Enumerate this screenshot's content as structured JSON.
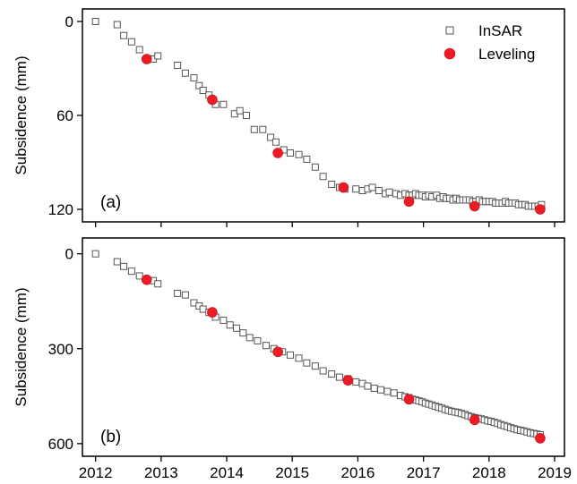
{
  "chart_data": [
    {
      "type": "scatter",
      "panel_label": "(a)",
      "ylabel": "Subsidence (mm)",
      "ylim": [
        -8,
        128
      ],
      "yticks": [
        0,
        60,
        120
      ],
      "xlim": [
        2011.8,
        2019.15
      ],
      "xticks": [
        2012,
        2013,
        2014,
        2015,
        2016,
        2017,
        2018,
        2019
      ],
      "legend": {
        "position": "top-right",
        "entries": [
          "InSAR",
          "Leveling"
        ]
      },
      "series": [
        {
          "name": "InSAR",
          "marker": "open-square",
          "color": "#555555",
          "x": [
            2012.0,
            2012.33,
            2012.43,
            2012.55,
            2012.67,
            2012.88,
            2012.95,
            2013.25,
            2013.37,
            2013.5,
            2013.58,
            2013.64,
            2013.73,
            2013.83,
            2013.95,
            2014.12,
            2014.2,
            2014.3,
            2014.42,
            2014.55,
            2014.67,
            2014.75,
            2014.87,
            2014.97,
            2015.1,
            2015.22,
            2015.35,
            2015.47,
            2015.6,
            2015.72,
            2015.8,
            2015.97,
            2016.07,
            2016.15,
            2016.22,
            2016.32,
            2016.42,
            2016.48,
            2016.58,
            2016.65,
            2016.72,
            2016.78,
            2016.83,
            2016.88,
            2016.93,
            2016.98,
            2017.03,
            2017.08,
            2017.13,
            2017.2,
            2017.25,
            2017.3,
            2017.35,
            2017.4,
            2017.45,
            2017.5,
            2017.55,
            2017.6,
            2017.65,
            2017.7,
            2017.75,
            2017.8,
            2017.85,
            2017.9,
            2017.95,
            2018.0,
            2018.05,
            2018.1,
            2018.15,
            2018.2,
            2018.25,
            2018.3,
            2018.35,
            2018.4,
            2018.45,
            2018.5,
            2018.55,
            2018.6,
            2018.65,
            2018.7,
            2018.75,
            2018.8
          ],
          "y": [
            0,
            2,
            9,
            13,
            18,
            24,
            22,
            28,
            33,
            36,
            41,
            44,
            47,
            53,
            53,
            59,
            57,
            60,
            69,
            69,
            74,
            77,
            82,
            84,
            85,
            88,
            93,
            99,
            104,
            106,
            107,
            107,
            108,
            107,
            106,
            108,
            110,
            109,
            110,
            111,
            110,
            111,
            111,
            110,
            111,
            111,
            112,
            111,
            112,
            111,
            113,
            112,
            113,
            113,
            114,
            113,
            114,
            114,
            114,
            114,
            115,
            115,
            114,
            115,
            115,
            115,
            115,
            116,
            116,
            116,
            115,
            116,
            116,
            116,
            117,
            117,
            117,
            118,
            118,
            118,
            118,
            117
          ]
        },
        {
          "name": "Leveling",
          "marker": "filled-circle",
          "color": "#ed1c24",
          "x": [
            2012.78,
            2013.78,
            2014.78,
            2015.78,
            2016.78,
            2017.78,
            2018.78
          ],
          "y": [
            24,
            50,
            84,
            106,
            115,
            118,
            120
          ]
        }
      ]
    },
    {
      "type": "scatter",
      "panel_label": "(b)",
      "ylabel": "Subsidence (mm)",
      "ylim": [
        -50,
        640
      ],
      "yticks": [
        0,
        300,
        600
      ],
      "xlim": [
        2011.8,
        2019.15
      ],
      "xticks": [
        2012,
        2013,
        2014,
        2015,
        2016,
        2017,
        2018,
        2019
      ],
      "xtick_labels": [
        "2012",
        "2013",
        "2014",
        "2015",
        "2016",
        "2017",
        "2018",
        "2019"
      ],
      "series": [
        {
          "name": "InSAR",
          "marker": "open-square",
          "color": "#555555",
          "x": [
            2012.0,
            2012.33,
            2012.43,
            2012.55,
            2012.67,
            2012.88,
            2012.95,
            2013.25,
            2013.37,
            2013.5,
            2013.58,
            2013.64,
            2013.73,
            2013.83,
            2013.95,
            2014.05,
            2014.15,
            2014.25,
            2014.35,
            2014.47,
            2014.6,
            2014.72,
            2014.85,
            2014.97,
            2015.1,
            2015.22,
            2015.35,
            2015.47,
            2015.6,
            2015.72,
            2015.85,
            2015.97,
            2016.07,
            2016.15,
            2016.25,
            2016.35,
            2016.45,
            2016.55,
            2016.65,
            2016.72,
            2016.78,
            2016.83,
            2016.88,
            2016.93,
            2016.98,
            2017.03,
            2017.08,
            2017.13,
            2017.18,
            2017.23,
            2017.28,
            2017.33,
            2017.38,
            2017.43,
            2017.48,
            2017.53,
            2017.58,
            2017.63,
            2017.68,
            2017.73,
            2017.78,
            2017.83,
            2017.88,
            2017.93,
            2017.98,
            2018.03,
            2018.08,
            2018.13,
            2018.18,
            2018.23,
            2018.28,
            2018.33,
            2018.38,
            2018.43,
            2018.48,
            2018.53,
            2018.58,
            2018.63,
            2018.68,
            2018.73,
            2018.78
          ],
          "y": [
            0,
            25,
            40,
            55,
            70,
            85,
            95,
            125,
            130,
            155,
            165,
            175,
            185,
            200,
            210,
            225,
            235,
            250,
            265,
            275,
            290,
            300,
            310,
            320,
            330,
            345,
            355,
            370,
            380,
            390,
            395,
            405,
            410,
            418,
            425,
            430,
            435,
            440,
            448,
            452,
            455,
            460,
            462,
            465,
            468,
            472,
            475,
            478,
            482,
            485,
            488,
            492,
            495,
            498,
            500,
            502,
            505,
            508,
            512,
            515,
            518,
            520,
            522,
            525,
            528,
            530,
            533,
            536,
            540,
            543,
            546,
            550,
            553,
            556,
            558,
            560,
            563,
            566,
            568,
            570,
            572
          ]
        },
        {
          "name": "Leveling",
          "marker": "filled-circle",
          "color": "#ed1c24",
          "x": [
            2012.78,
            2013.78,
            2014.78,
            2015.85,
            2016.78,
            2017.78,
            2018.78
          ],
          "y": [
            82,
            185,
            310,
            400,
            460,
            525,
            583
          ]
        }
      ]
    }
  ]
}
